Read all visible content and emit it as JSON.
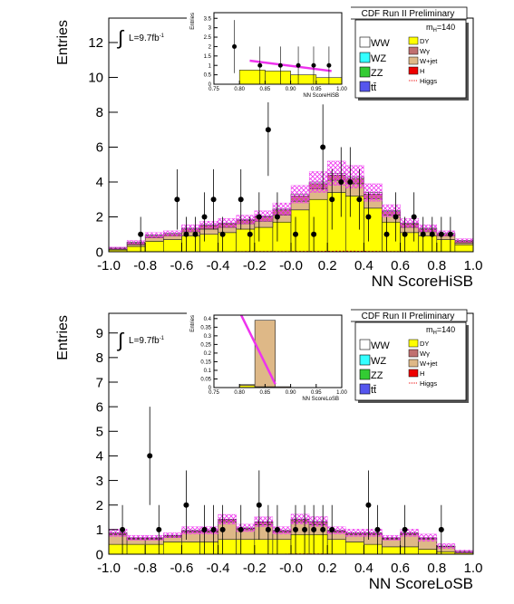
{
  "chart_data": [
    {
      "type": "histogram",
      "header": "CDF Run II Preliminary",
      "mass": {
        "base": "m",
        "sub": "H",
        "rest": "=140"
      },
      "lumi": {
        "symbol": "∫",
        "text": "L=9.7fb",
        "sup": "-1"
      },
      "xlabel": "NN ScoreHiSB",
      "ylabel": "Entries",
      "xlim": [
        -1,
        1
      ],
      "ylim": [
        0,
        13.4
      ],
      "xticks": [
        {
          "value": -1,
          "label": "-1.0"
        },
        -0.8,
        -0.6,
        -0.4,
        -0.2,
        {
          "value": 0,
          "label": "-0.0"
        },
        0.2,
        0.4,
        0.6,
        0.8,
        {
          "value": 1,
          "label": "1.0"
        }
      ],
      "yticks": [
        0,
        2,
        4,
        6,
        8,
        10,
        12
      ],
      "bins": [
        -1,
        -0.9,
        -0.8,
        -0.7,
        -0.6,
        -0.5,
        -0.4,
        -0.3,
        -0.2,
        -0.1,
        0,
        0.1,
        0.2,
        0.3,
        0.4,
        0.5,
        0.6,
        0.7,
        0.8,
        0.9,
        1
      ],
      "series": [
        {
          "name": "WW",
          "color": "#ffffff",
          "values": [
            0.02,
            0.05,
            0.05,
            0.05,
            0.05,
            0.05,
            0.05,
            0.05,
            0.05,
            0.05,
            0.1,
            0.1,
            0.1,
            0.1,
            0.1,
            0.05,
            0.05,
            0.05,
            0.05,
            0.05
          ]
        },
        {
          "name": "WZ",
          "color": "#33ffff",
          "values": [
            0,
            0,
            0,
            0,
            0,
            0,
            0,
            0,
            0,
            0,
            0,
            0,
            0,
            0,
            0,
            0,
            0,
            0,
            0,
            0
          ]
        },
        {
          "name": "ZZ",
          "color": "#33cc33",
          "values": [
            0,
            0,
            0,
            0,
            0,
            0,
            0,
            0,
            0,
            0,
            0,
            0,
            0,
            0,
            0,
            0,
            0,
            0,
            0,
            0
          ]
        },
        {
          "name": "tt̄",
          "color": "#5555ee",
          "values": [
            0,
            0,
            0,
            0,
            0,
            0,
            0,
            0,
            0,
            0,
            0,
            0,
            0,
            0,
            0,
            0,
            0,
            0,
            0,
            0
          ]
        },
        {
          "name": "DY",
          "color": "#ffff00",
          "values": [
            0.1,
            0.3,
            0.6,
            0.7,
            0.9,
            1.0,
            1.1,
            1.3,
            1.4,
            1.7,
            2.4,
            3.0,
            3.4,
            3.2,
            2.5,
            1.7,
            1.1,
            0.9,
            0.7,
            0.4
          ]
        },
        {
          "name": "Wγ",
          "color": "#c07070",
          "values": [
            0.05,
            0.1,
            0.1,
            0.1,
            0.15,
            0.2,
            0.2,
            0.2,
            0.25,
            0.3,
            0.3,
            0.3,
            0.3,
            0.3,
            0.25,
            0.2,
            0.2,
            0.15,
            0.1,
            0.1
          ]
        },
        {
          "name": "W+jet",
          "color": "#deb887",
          "values": [
            0.05,
            0.1,
            0.2,
            0.2,
            0.25,
            0.3,
            0.3,
            0.3,
            0.35,
            0.4,
            0.5,
            0.6,
            0.7,
            0.7,
            0.55,
            0.4,
            0.3,
            0.25,
            0.2,
            0.1
          ]
        },
        {
          "name": "H",
          "color": "#ee0000",
          "values": [
            0,
            0,
            0,
            0,
            0,
            0,
            0,
            0,
            0,
            0,
            0,
            0,
            0,
            0,
            0,
            0,
            0,
            0,
            0,
            0
          ]
        },
        {
          "name": "Higgs",
          "color": "#ee0000",
          "style": "line",
          "values": [
            0,
            0,
            0,
            0,
            0,
            0,
            0,
            0.01,
            0.01,
            0.01,
            0.02,
            0.02,
            0.03,
            0.03,
            0.02,
            0.01,
            0.01,
            0,
            0,
            0
          ]
        }
      ],
      "band": {
        "color": "#ee33ee",
        "values": [
          0.05,
          0.1,
          0.15,
          0.15,
          0.2,
          0.2,
          0.25,
          0.25,
          0.3,
          0.35,
          0.5,
          0.6,
          0.7,
          0.65,
          0.5,
          0.35,
          0.25,
          0.2,
          0.15,
          0.1
        ]
      },
      "data": {
        "x": [
          -0.825,
          -0.625,
          -0.575,
          -0.525,
          -0.475,
          -0.425,
          -0.375,
          -0.275,
          -0.225,
          -0.175,
          -0.125,
          -0.075,
          0.025,
          0.125,
          0.175,
          0.225,
          0.275,
          0.325,
          0.375,
          0.425,
          0.525,
          0.575,
          0.625,
          0.675,
          0.725,
          0.775,
          0.825,
          0.875
        ],
        "values": [
          1,
          3,
          1,
          1,
          2,
          3,
          1,
          3,
          1,
          2,
          7,
          2,
          1,
          1,
          6,
          3,
          4,
          4,
          3,
          2,
          1,
          2,
          1,
          2,
          1,
          1,
          1,
          1
        ],
        "errors": [
          1,
          1.73,
          1,
          1,
          1.41,
          1.73,
          1,
          1.73,
          1,
          1.41,
          2.65,
          1.41,
          1,
          1,
          2.45,
          1.73,
          2,
          2,
          1.73,
          1.41,
          1,
          1.41,
          1,
          1.41,
          1,
          1,
          1,
          1
        ]
      }
    },
    {
      "type": "histogram",
      "xlabel": "NN ScoreHiSB",
      "ylabel": "Entries",
      "xlim": [
        0.75,
        1
      ],
      "ylim": [
        0,
        3.8
      ],
      "xticks": [
        0.75,
        {
          "value": 0.8,
          "label": "0.80"
        },
        0.85,
        {
          "value": 0.9,
          "label": "0.90"
        },
        0.95,
        {
          "value": 1,
          "label": "1.00"
        }
      ],
      "yticks": [
        0,
        0.5,
        1,
        1.5,
        2,
        2.5,
        3,
        3.5
      ],
      "bins": [
        0.75,
        0.8,
        0.85,
        0.9,
        0.95,
        1
      ],
      "series": [
        {
          "color": "#ffff00",
          "values": [
            0,
            0.75,
            0.7,
            0.5,
            0.35
          ]
        }
      ],
      "line": {
        "color": "#ee33ee",
        "x": [
          0.82,
          0.98
        ],
        "values": [
          1.25,
          0.7
        ]
      },
      "data": {
        "x": [
          0.79,
          0.84,
          0.88,
          0.915,
          0.945,
          0.975
        ],
        "values": [
          2,
          1,
          1,
          1,
          1,
          1
        ],
        "errors": [
          1.41,
          1,
          1,
          1,
          1,
          1
        ]
      }
    },
    {
      "type": "histogram",
      "header": "CDF Run II Preliminary",
      "mass": {
        "base": "m",
        "sub": "H",
        "rest": "=140"
      },
      "lumi": {
        "symbol": "∫",
        "text": "L=9.7fb",
        "sup": "-1"
      },
      "xlabel": "NN ScoreLoSB",
      "ylabel": "Entries",
      "xlim": [
        -1,
        1
      ],
      "ylim": [
        0,
        9.8
      ],
      "xticks": [
        {
          "value": -1,
          "label": "-1.0"
        },
        -0.8,
        -0.6,
        -0.4,
        -0.2,
        {
          "value": 0,
          "label": "-0.0"
        },
        0.2,
        0.4,
        0.6,
        0.8,
        {
          "value": 1,
          "label": "1.0"
        }
      ],
      "yticks": [
        0,
        1,
        2,
        3,
        4,
        5,
        6,
        7,
        8,
        9
      ],
      "bins": [
        -1,
        -0.9,
        -0.8,
        -0.7,
        -0.6,
        -0.5,
        -0.4,
        -0.3,
        -0.2,
        -0.1,
        0,
        0.1,
        0.2,
        0.3,
        0.4,
        0.5,
        0.6,
        0.7,
        0.8,
        0.9,
        1
      ],
      "series": [
        {
          "name": "WW",
          "color": "#ffffff",
          "values": [
            0.02,
            0.02,
            0.02,
            0.02,
            0.02,
            0.02,
            0.02,
            0.02,
            0.02,
            0.02,
            0.03,
            0.03,
            0.02,
            0.02,
            0.02,
            0.02,
            0.02,
            0.02,
            0.01,
            0.01
          ]
        },
        {
          "name": "WZ",
          "color": "#33ffff",
          "values": [
            0,
            0,
            0,
            0,
            0,
            0,
            0,
            0,
            0,
            0,
            0,
            0,
            0,
            0,
            0,
            0,
            0,
            0,
            0,
            0
          ]
        },
        {
          "name": "ZZ",
          "color": "#33cc33",
          "values": [
            0,
            0,
            0,
            0,
            0,
            0,
            0,
            0,
            0,
            0,
            0,
            0,
            0,
            0,
            0,
            0,
            0,
            0,
            0,
            0
          ]
        },
        {
          "name": "tt̄",
          "color": "#5555ee",
          "values": [
            0,
            0,
            0,
            0,
            0,
            0,
            0,
            0,
            0,
            0,
            0,
            0,
            0,
            0,
            0,
            0,
            0,
            0,
            0,
            0
          ]
        },
        {
          "name": "DY",
          "color": "#ffff00",
          "values": [
            0.4,
            0.4,
            0.4,
            0.5,
            0.5,
            0.5,
            0.6,
            0.6,
            0.6,
            0.6,
            0.8,
            0.8,
            0.6,
            0.5,
            0.4,
            0.3,
            0.3,
            0.2,
            0.1,
            0.05
          ]
        },
        {
          "name": "Wγ",
          "color": "#c07070",
          "values": [
            0.05,
            0.05,
            0.05,
            0.05,
            0.05,
            0.05,
            0.1,
            0.05,
            0.1,
            0.05,
            0.1,
            0.1,
            0.05,
            0.05,
            0.05,
            0.05,
            0.05,
            0.05,
            0.02,
            0.01
          ]
        },
        {
          "name": "W+jet",
          "color": "#deb887",
          "values": [
            0.4,
            0.2,
            0.2,
            0.2,
            0.4,
            0.4,
            0.7,
            0.4,
            0.6,
            0.3,
            0.5,
            0.4,
            0.3,
            0.3,
            0.4,
            0.3,
            0.5,
            0.4,
            0.2,
            0.05
          ]
        },
        {
          "name": "H",
          "color": "#ee0000",
          "values": [
            0,
            0,
            0,
            0,
            0,
            0,
            0,
            0,
            0,
            0,
            0,
            0,
            0,
            0,
            0,
            0,
            0,
            0,
            0,
            0
          ]
        },
        {
          "name": "Higgs",
          "color": "#ee0000",
          "style": "line",
          "values": [
            0,
            0,
            0,
            0,
            0,
            0,
            0,
            0,
            0,
            0,
            0.01,
            0.01,
            0,
            0,
            0,
            0,
            0,
            0,
            0,
            0
          ]
        }
      ],
      "band": {
        "color": "#ee33ee",
        "values": [
          0.15,
          0.1,
          0.1,
          0.1,
          0.15,
          0.15,
          0.2,
          0.15,
          0.2,
          0.15,
          0.2,
          0.2,
          0.15,
          0.15,
          0.15,
          0.1,
          0.15,
          0.15,
          0.1,
          0.05
        ]
      },
      "data": {
        "x": [
          -0.925,
          -0.775,
          -0.725,
          -0.575,
          -0.475,
          -0.425,
          -0.375,
          -0.275,
          -0.175,
          -0.125,
          -0.075,
          0.025,
          0.075,
          0.125,
          0.175,
          0.225,
          0.425,
          0.475,
          0.625,
          0.825
        ],
        "values": [
          1,
          4,
          1,
          2,
          1,
          1,
          1,
          1,
          2,
          1,
          1,
          1,
          1,
          1,
          1,
          1,
          2,
          1,
          1,
          1
        ],
        "errors": [
          1,
          2,
          1,
          1.41,
          1,
          1,
          1,
          1,
          1.41,
          1,
          1,
          1,
          1,
          1,
          1,
          1,
          1.41,
          1,
          1,
          1
        ]
      }
    },
    {
      "type": "histogram",
      "xlabel": "NN ScoreLoSB",
      "ylabel": "Entries",
      "xlim": [
        0.75,
        1
      ],
      "ylim": [
        0,
        0.42
      ],
      "xticks": [
        0.75,
        {
          "value": 0.8,
          "label": "0.80"
        },
        0.85,
        {
          "value": 0.9,
          "label": "0.90"
        },
        0.95,
        {
          "value": 1,
          "label": "1.00"
        }
      ],
      "yticks": [
        0,
        0.05,
        0.1,
        0.15,
        0.2,
        0.25,
        0.3,
        0.35,
        0.4
      ],
      "bins": [
        0.75,
        0.8,
        0.83,
        0.87,
        0.9,
        0.95,
        1
      ],
      "series": [
        {
          "color": "#ffff00",
          "values": [
            0,
            0.012,
            0.005,
            0,
            0,
            0
          ]
        },
        {
          "color": "#deb887",
          "values": [
            0,
            0.005,
            0.385,
            0.005,
            0,
            0
          ]
        }
      ],
      "line": {
        "color": "#ee33ee",
        "x": [
          0.8,
          0.87
        ],
        "values": [
          0.44,
          0.02
        ]
      }
    }
  ]
}
